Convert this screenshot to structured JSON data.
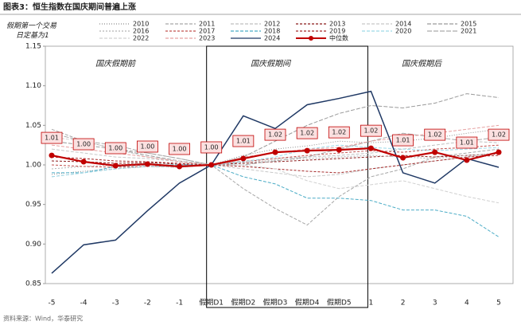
{
  "chart_data": {
    "type": "line",
    "title": "图表3：恒生指数在国庆期间普遍上涨",
    "ylabel": "假期第一个交易日定基为1",
    "annotations": [
      "国庆假期前",
      "国庆假期间",
      "国庆假期后"
    ],
    "source": "资料来源：Wind，华泰研究",
    "categories": [
      "-5",
      "-4",
      "-3",
      "-2",
      "-1",
      "假期D1",
      "假期D2",
      "假期D3",
      "假期D4",
      "假期D5",
      "1",
      "2",
      "3",
      "4",
      "5"
    ],
    "ylim": [
      0.85,
      1.15
    ],
    "yticks": [
      {
        "value": 0.85,
        "label": "0.85"
      },
      {
        "value": 0.9,
        "label": "0.90"
      },
      {
        "value": 0.95,
        "label": "0.95"
      },
      {
        "value": 1.0,
        "label": "1.00"
      },
      {
        "value": 1.05,
        "label": "1.05"
      },
      {
        "value": 1.1,
        "label": "1.10"
      },
      {
        "value": 1.15,
        "label": "1.15"
      }
    ],
    "grid": false,
    "series": [
      {
        "name": "2010",
        "color": "#8c8c8c",
        "dash": "1,2",
        "values": [
          0.988,
          0.992,
          0.995,
          0.998,
          0.997,
          1.0,
          1.012,
          1.02,
          1.024,
          1.03,
          1.028,
          1.03,
          1.034,
          1.04,
          1.045
        ]
      },
      {
        "name": "2011",
        "color": "#a6a6a6",
        "dash": "4,2",
        "values": [
          1.045,
          1.03,
          1.02,
          1.015,
          1.008,
          1.0,
          0.97,
          0.945,
          0.924,
          0.96,
          0.985,
          0.995,
          1.01,
          1.015,
          1.02
        ]
      },
      {
        "name": "2012",
        "color": "#bfbfbf",
        "dash": "4,2",
        "values": [
          0.985,
          0.99,
          0.995,
          0.998,
          0.997,
          1.0,
          1.005,
          1.008,
          1.01,
          1.012,
          1.015,
          1.02,
          1.025,
          1.03,
          1.028
        ]
      },
      {
        "name": "2013",
        "color": "#8b1a1a",
        "dash": "3,2",
        "values": [
          1.005,
          1.004,
          1.002,
          1.003,
          1.001,
          1.0,
          1.002,
          1.004,
          1.006,
          1.008,
          1.01,
          1.012,
          1.01,
          1.012,
          1.014
        ]
      },
      {
        "name": "2014",
        "color": "#c8c8c8",
        "dash": "4,2",
        "values": [
          1.02,
          1.015,
          1.01,
          1.008,
          1.004,
          1.0,
          0.995,
          0.99,
          0.985,
          0.988,
          0.995,
          1.0,
          1.005,
          1.01,
          1.015
        ]
      },
      {
        "name": "2015",
        "color": "#9a9a9a",
        "dash": "5,2",
        "values": [
          1.03,
          1.025,
          1.02,
          1.012,
          1.005,
          1.0,
          1.01,
          1.03,
          1.05,
          1.065,
          1.075,
          1.072,
          1.078,
          1.09,
          1.085
        ]
      },
      {
        "name": "2016",
        "color": "#b5b5b5",
        "dash": "2,2",
        "values": [
          0.995,
          0.998,
          1.0,
          1.002,
          1.001,
          1.0,
          1.003,
          1.006,
          1.008,
          1.01,
          1.012,
          1.01,
          1.008,
          1.012,
          1.015
        ]
      },
      {
        "name": "2017",
        "color": "#c0504d",
        "dash": "3,2",
        "values": [
          1.0,
          0.998,
          0.997,
          0.998,
          0.999,
          1.0,
          1.004,
          1.008,
          1.012,
          1.015,
          1.018,
          1.016,
          1.02,
          1.022,
          1.025
        ]
      },
      {
        "name": "2018",
        "color": "#4bacc6",
        "dash": "4,2",
        "values": [
          0.99,
          0.99,
          0.998,
          1.0,
          1.0,
          1.0,
          0.985,
          0.976,
          0.958,
          0.958,
          0.955,
          0.943,
          0.943,
          0.935,
          0.909
        ]
      },
      {
        "name": "2019",
        "color": "#a52a2a",
        "dash": "3,2",
        "values": [
          1.01,
          1.008,
          1.005,
          1.004,
          1.002,
          1.0,
          0.998,
          0.995,
          0.992,
          0.99,
          0.995,
          1.0,
          1.005,
          1.01,
          1.012
        ]
      },
      {
        "name": "2020",
        "color": "#9dd9e8",
        "dash": "4,2",
        "values": [
          0.985,
          0.99,
          0.995,
          0.998,
          0.999,
          1.0,
          1.004,
          1.01,
          1.02,
          1.025,
          1.022,
          1.02,
          1.018,
          1.02,
          1.022
        ]
      },
      {
        "name": "2021",
        "color": "#aaaaaa",
        "dash": "6,2",
        "values": [
          1.04,
          1.03,
          1.025,
          1.015,
          1.008,
          1.0,
          1.0,
          1.005,
          1.01,
          1.02,
          1.03,
          1.04,
          1.035,
          1.03,
          1.035
        ]
      },
      {
        "name": "2022",
        "color": "#d0d0d0",
        "dash": "4,2",
        "values": [
          1.035,
          1.03,
          1.02,
          1.01,
          1.005,
          1.0,
          1.0,
          0.995,
          0.98,
          0.97,
          0.975,
          0.98,
          0.97,
          0.96,
          0.952
        ]
      },
      {
        "name": "2023",
        "color": "#e6a0a0",
        "dash": "4,2",
        "values": [
          1.025,
          1.02,
          1.015,
          1.01,
          1.004,
          1.0,
          1.01,
          1.015,
          1.02,
          1.022,
          1.03,
          1.035,
          1.04,
          1.045,
          1.05
        ]
      },
      {
        "name": "2024",
        "color": "#1f3864",
        "dash": "",
        "values": [
          0.863,
          0.899,
          0.905,
          0.942,
          0.977,
          1.0,
          1.062,
          1.046,
          1.076,
          1.084,
          1.093,
          0.99,
          0.977,
          1.008,
          0.997
        ]
      },
      {
        "name": "中位数",
        "color": "#c00000",
        "dash": "",
        "median": true,
        "values": [
          1.012,
          1.004,
          0.999,
          1.001,
          0.998,
          1.0,
          1.008,
          1.016,
          1.018,
          1.019,
          1.021,
          1.009,
          1.016,
          1.006,
          1.016
        ],
        "value_labels": [
          "1.01",
          "1.00",
          "1.00",
          "1.00",
          "1.00",
          "1.00",
          "1.01",
          "1.02",
          "1.02",
          "1.02",
          "1.02",
          "1.01",
          "1.02",
          "1.01",
          "1.02"
        ]
      }
    ]
  }
}
